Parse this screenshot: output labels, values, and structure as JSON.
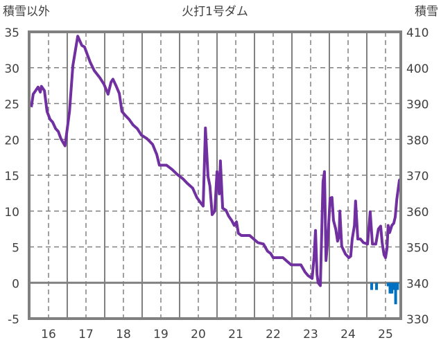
{
  "chart_data": {
    "type": "line",
    "title": "火打1号ダム",
    "ylabel": "積雪以外",
    "y2label": "積雪",
    "ylim": [
      -5,
      35
    ],
    "y2lim": [
      330,
      410
    ],
    "xlim": [
      15.5,
      25.5
    ],
    "yticks": [
      "-5",
      "0",
      "5",
      "10",
      "15",
      "20",
      "25",
      "30",
      "35"
    ],
    "y2ticks": [
      "330",
      "340",
      "350",
      "360",
      "370",
      "380",
      "390",
      "400",
      "410"
    ],
    "xticks": [
      "16",
      "17",
      "18",
      "19",
      "20",
      "21",
      "22",
      "23",
      "24",
      "25"
    ],
    "grid": true,
    "series": [
      {
        "name": "積雪以外",
        "type": "line",
        "color": "#7030A0",
        "axis": "left",
        "x": [
          15.54,
          15.59,
          15.72,
          15.78,
          15.81,
          15.89,
          15.96,
          16.04,
          16.11,
          16.19,
          16.26,
          16.33,
          16.44,
          16.5,
          16.56,
          16.65,
          16.78,
          16.89,
          16.96,
          17.11,
          17.22,
          17.37,
          17.48,
          17.59,
          17.67,
          17.72,
          17.81,
          17.89,
          17.96,
          18.04,
          18.15,
          18.26,
          18.37,
          18.48,
          18.63,
          18.78,
          18.89,
          18.96,
          19.15,
          19.3,
          19.44,
          19.59,
          19.7,
          19.85,
          19.96,
          20.07,
          20.13,
          20.19,
          20.26,
          20.31,
          20.37,
          20.44,
          20.5,
          20.56,
          20.59,
          20.65,
          20.74,
          20.81,
          20.89,
          20.96,
          21.02,
          21.07,
          21.15,
          21.37,
          21.48,
          21.59,
          21.74,
          21.85,
          21.93,
          22.0,
          22.26,
          22.37,
          22.48,
          22.74,
          22.85,
          22.93,
          23.04,
          23.09,
          23.13,
          23.17,
          23.2,
          23.26,
          23.33,
          23.37,
          23.41,
          23.46,
          23.52,
          23.57,
          23.61,
          23.67,
          23.72,
          23.76,
          23.78,
          23.83,
          23.93,
          24.02,
          24.07,
          24.11,
          24.17,
          24.2,
          24.26,
          24.33,
          24.41,
          24.52,
          24.59,
          24.65,
          24.74,
          24.81,
          24.87,
          24.91,
          24.96,
          25.0,
          25.04,
          25.07,
          25.11,
          25.17,
          25.22,
          25.26,
          25.3,
          25.37,
          25.41
        ],
        "values": [
          24.5,
          26.3,
          27.3,
          26.6,
          27.4,
          26.8,
          23.9,
          22.8,
          22.4,
          21.5,
          21.1,
          20.1,
          19.1,
          21.5,
          23.9,
          30.3,
          34.4,
          33.1,
          32.9,
          30.8,
          29.6,
          28.6,
          27.7,
          26.3,
          28.0,
          28.4,
          27.4,
          26.4,
          23.9,
          23.4,
          22.8,
          22.0,
          21.5,
          20.6,
          20.1,
          19.3,
          17.9,
          16.4,
          16.4,
          15.8,
          15.1,
          14.5,
          13.9,
          13.2,
          11.9,
          11.1,
          10.7,
          21.6,
          14.8,
          13.5,
          9.5,
          10.0,
          15.5,
          12.4,
          17.0,
          10.4,
          10.1,
          9.3,
          8.7,
          8.0,
          8.5,
          6.9,
          6.6,
          6.6,
          6.1,
          5.6,
          5.4,
          4.4,
          4.1,
          3.5,
          3.5,
          3.0,
          2.5,
          2.5,
          1.5,
          1.0,
          0.6,
          3.5,
          7.3,
          1.2,
          0,
          -0.4,
          14.1,
          15.5,
          3.1,
          6.1,
          11.8,
          11.9,
          8.7,
          7.5,
          5.8,
          6.5,
          10.0,
          5.1,
          4.0,
          3.5,
          3.7,
          6.1,
          8.0,
          11.4,
          6.1,
          6.1,
          5.6,
          5.4,
          9.9,
          5.4,
          5.4,
          7.5,
          7.9,
          5.6,
          3.9,
          3.5,
          4.8,
          8.0,
          7.0,
          8.0,
          8.3,
          9.2,
          11.6,
          14.3,
          14.5
        ]
      },
      {
        "name": "積雪",
        "type": "bar",
        "color": "#0070C0",
        "axis": "right",
        "base": 340,
        "x": [
          24.63,
          24.76,
          25.07,
          25.12,
          25.17,
          25.22,
          25.27,
          25.32
        ],
        "values": [
          338,
          338,
          339,
          337,
          337,
          338,
          334,
          338
        ]
      }
    ]
  }
}
